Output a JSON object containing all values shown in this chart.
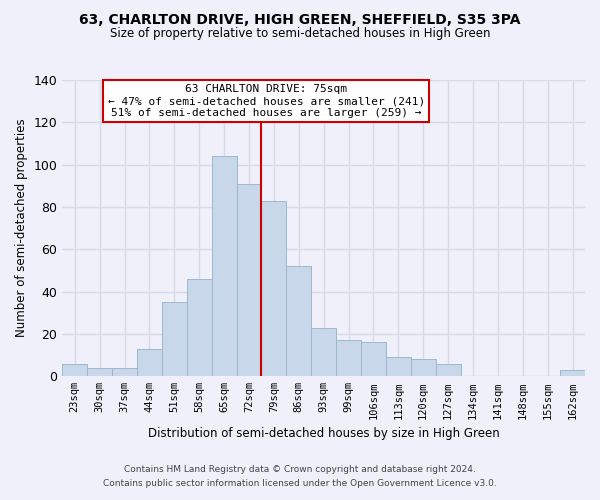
{
  "title": "63, CHARLTON DRIVE, HIGH GREEN, SHEFFIELD, S35 3PA",
  "subtitle": "Size of property relative to semi-detached houses in High Green",
  "xlabel": "Distribution of semi-detached houses by size in High Green",
  "ylabel": "Number of semi-detached properties",
  "footer_line1": "Contains HM Land Registry data © Crown copyright and database right 2024.",
  "footer_line2": "Contains public sector information licensed under the Open Government Licence v3.0.",
  "bar_labels": [
    "23sqm",
    "30sqm",
    "37sqm",
    "44sqm",
    "51sqm",
    "58sqm",
    "65sqm",
    "72sqm",
    "79sqm",
    "86sqm",
    "93sqm",
    "99sqm",
    "106sqm",
    "113sqm",
    "120sqm",
    "127sqm",
    "134sqm",
    "141sqm",
    "148sqm",
    "155sqm",
    "162sqm"
  ],
  "bar_values": [
    6,
    4,
    4,
    13,
    35,
    46,
    104,
    91,
    83,
    52,
    23,
    17,
    16,
    9,
    8,
    6,
    0,
    0,
    0,
    0,
    3
  ],
  "bar_color": "#c8d8ea",
  "bar_edge_color": "#9ab8cc",
  "ylim": [
    0,
    140
  ],
  "yticks": [
    0,
    20,
    40,
    60,
    80,
    100,
    120,
    140
  ],
  "property_line_label": "63 CHARLTON DRIVE: 75sqm",
  "annotation_smaller": "← 47% of semi-detached houses are smaller (241)",
  "annotation_larger": "51% of semi-detached houses are larger (259) →",
  "annotation_box_color": "#ffffff",
  "annotation_box_edge_color": "#cc0000",
  "property_line_color": "#cc0000",
  "background_color": "#f0f0fa",
  "grid_color": "#d8d8e8"
}
